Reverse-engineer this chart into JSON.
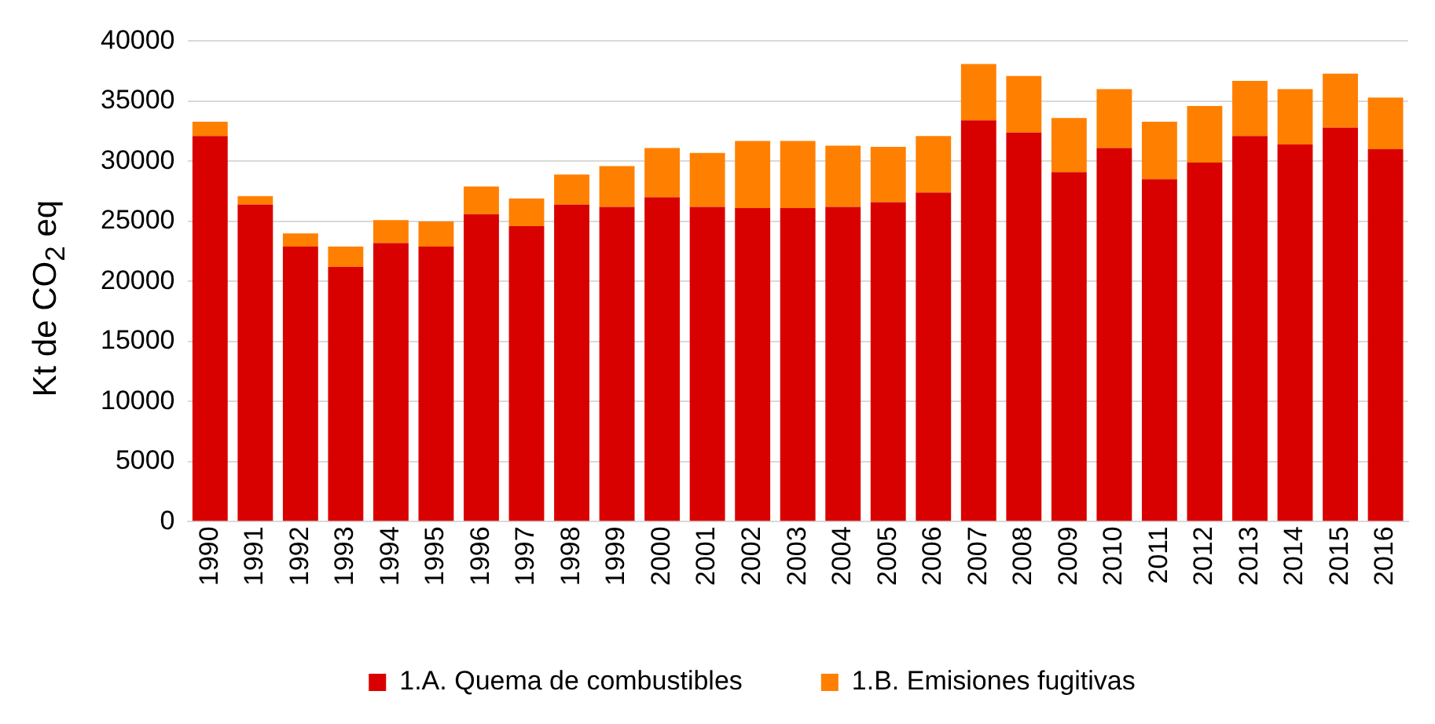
{
  "chart_data": {
    "type": "bar",
    "ylabel": "Kt de CO$_{2}$ eq",
    "stacked": true,
    "categories": [
      "1990",
      "1991",
      "1992",
      "1993",
      "1994",
      "1995",
      "1996",
      "1997",
      "1998",
      "1999",
      "2000",
      "2001",
      "2002",
      "2003",
      "2004",
      "2005",
      "2006",
      "2007",
      "2008",
      "2009",
      "2010",
      "2011",
      "2012",
      "2013",
      "2014",
      "2015",
      "2016"
    ],
    "series": [
      {
        "name": "1.A. Quema de combustibles",
        "color": "#d90000",
        "values": [
          32100,
          26400,
          22900,
          21200,
          23200,
          22900,
          25600,
          24600,
          26400,
          26200,
          27000,
          26200,
          26100,
          26100,
          26200,
          26600,
          27400,
          33400,
          32400,
          29100,
          31100,
          28500,
          29900,
          32100,
          31400,
          32800,
          31000
        ]
      },
      {
        "name": "1.B. Emisiones fugitivas",
        "color": "#ff8000",
        "values": [
          1200,
          700,
          1100,
          1700,
          1900,
          2100,
          2300,
          2300,
          2500,
          3400,
          4100,
          4500,
          5600,
          5600,
          5100,
          4600,
          4700,
          4700,
          4700,
          4500,
          4900,
          4800,
          4700,
          4600,
          4600,
          4500,
          4300
        ]
      }
    ],
    "ylim": [
      0,
      40000
    ],
    "yticks": [
      0,
      5000,
      10000,
      15000,
      20000,
      25000,
      30000,
      35000,
      40000
    ],
    "grid": "y",
    "legend": "bottom"
  }
}
